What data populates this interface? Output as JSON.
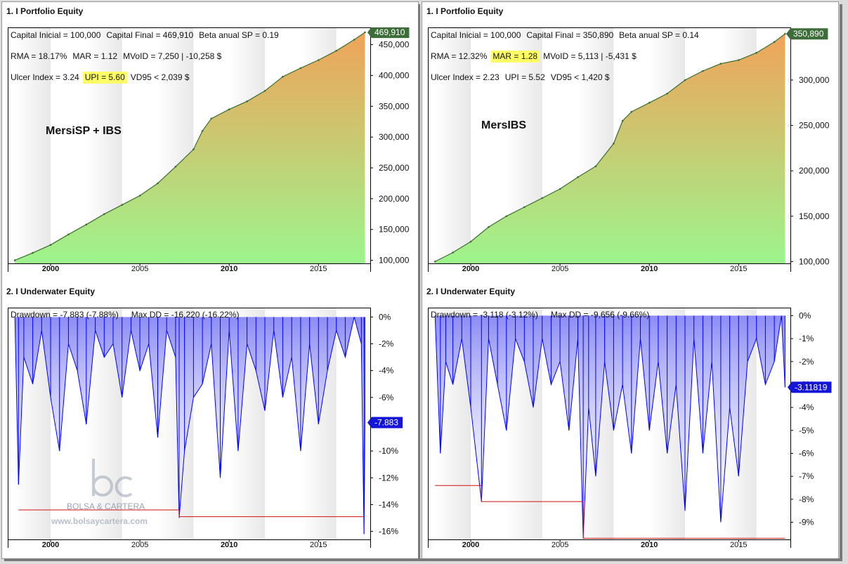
{
  "left": {
    "equity": {
      "pane_title": "1. I Portfolio Equity",
      "stats": [
        [
          "Capital Inicial = 100,000",
          "Capital Final = 469,910",
          "Beta anual SP = 0.19"
        ],
        [
          "RMA = 18.17%",
          "MAR = 1.12",
          "MVoID = 7,250 | -10,258 $"
        ],
        [
          "Ulcer Index = 3.24",
          "UPI = 5.60",
          "VD95 < 2,039 $"
        ]
      ],
      "highlight": "UPI = 5.60",
      "strategy_label": "MersiSP + IBS",
      "last_value_label": "469,910"
    },
    "underwater": {
      "pane_title": "2. I Underwater Equity",
      "stats": [
        "Drawdown = -7,883 (-7.88%)",
        "Max DD = -16,220 (-16.22%)"
      ],
      "last_value_label": "-7.883"
    },
    "watermark": {
      "name": "BOLSA & CARTERA",
      "url": "www.bolsaycartera.com"
    }
  },
  "right": {
    "equity": {
      "pane_title": "1. I Portfolio Equity",
      "stats": [
        [
          "Capital Inicial = 100,000",
          "Capital Final = 350,890",
          "Beta anual SP = 0.14"
        ],
        [
          "RMA = 12.32%",
          "MAR = 1.28",
          "MVoID = 5,113 | -5,431 $"
        ],
        [
          "Ulcer Index = 2.23",
          "UPI = 5.52",
          "VD95 < 1,420 $"
        ]
      ],
      "highlight": "MAR = 1.28",
      "strategy_label": "MersIBS",
      "last_value_label": "350,890"
    },
    "underwater": {
      "pane_title": "2. I Underwater Equity",
      "stats": [
        "Drawdown = -3,118 (-3.12%)",
        "Max DD = -9,656 (-9.66%)"
      ],
      "last_value_label": "-3.11819"
    }
  },
  "chart_data": [
    {
      "id": "left-equity",
      "type": "area",
      "title": "1. I Portfolio Equity",
      "xlabel": "",
      "ylabel": "",
      "x": [
        1998.0,
        1999.0,
        2000.0,
        2001.0,
        2002.0,
        2003.0,
        2004.0,
        2005.0,
        2006.0,
        2007.0,
        2008.0,
        2008.5,
        2009.0,
        2010.0,
        2011.0,
        2012.0,
        2013.0,
        2014.0,
        2015.0,
        2016.0,
        2017.0,
        2017.6
      ],
      "y": [
        100000,
        112000,
        125000,
        142000,
        158000,
        175000,
        190000,
        205000,
        225000,
        252000,
        280000,
        310000,
        330000,
        345000,
        358000,
        375000,
        398000,
        412000,
        425000,
        440000,
        458000,
        469910
      ],
      "xlim": [
        1997.6,
        2017.9
      ],
      "ylim": [
        95000,
        478000
      ],
      "xticks": [
        "2000",
        "2005",
        "2010",
        "2015"
      ],
      "xtick_values": [
        2000,
        2005,
        2010,
        2015
      ],
      "yticks": [
        "100,000",
        "150,000",
        "200,000",
        "250,000",
        "300,000",
        "350,000",
        "400,000",
        "450,000"
      ],
      "ytick_values": [
        100000,
        150000,
        200000,
        250000,
        300000,
        350000,
        400000,
        450000
      ],
      "colors": {
        "area_top": "#f0a35a",
        "area_bottom": "#9df58d",
        "line": "#3b6e2a"
      }
    },
    {
      "id": "right-equity",
      "type": "area",
      "title": "1. I Portfolio Equity",
      "xlabel": "",
      "ylabel": "",
      "x": [
        1998.0,
        1999.0,
        2000.0,
        2001.0,
        2002.0,
        2003.0,
        2004.0,
        2005.0,
        2006.0,
        2007.0,
        2008.0,
        2008.5,
        2009.0,
        2010.0,
        2011.0,
        2012.0,
        2013.0,
        2014.0,
        2015.0,
        2016.0,
        2017.0,
        2017.6
      ],
      "y": [
        100000,
        110000,
        122000,
        138000,
        150000,
        160000,
        170000,
        180000,
        193000,
        205000,
        230000,
        255000,
        265000,
        275000,
        285000,
        300000,
        310000,
        318000,
        322000,
        330000,
        342000,
        350890
      ],
      "xlim": [
        1997.6,
        2017.9
      ],
      "ylim": [
        98000,
        358000
      ],
      "xticks": [
        "2000",
        "2005",
        "2010",
        "2015"
      ],
      "xtick_values": [
        2000,
        2005,
        2010,
        2015
      ],
      "yticks": [
        "100,000",
        "150,000",
        "200,000",
        "250,000",
        "300,000"
      ],
      "ytick_values": [
        100000,
        150000,
        200000,
        250000,
        300000
      ],
      "colors": {
        "area_top": "#f0a35a",
        "area_bottom": "#9df58d",
        "line": "#3b6e2a"
      }
    },
    {
      "id": "left-underwater",
      "type": "area",
      "title": "2. I Underwater Equity",
      "xlabel": "",
      "ylabel": "",
      "x": [
        1998.0,
        1998.2,
        1998.5,
        1999.0,
        1999.5,
        2000.0,
        2000.5,
        2001.0,
        2001.5,
        2002.0,
        2002.5,
        2003.0,
        2003.5,
        2004.0,
        2004.5,
        2005.0,
        2005.5,
        2006.0,
        2006.5,
        2007.0,
        2007.2,
        2007.5,
        2008.0,
        2008.5,
        2009.0,
        2009.5,
        2010.0,
        2010.5,
        2011.0,
        2011.5,
        2012.0,
        2012.5,
        2013.0,
        2013.5,
        2014.0,
        2014.5,
        2015.0,
        2015.5,
        2016.0,
        2016.5,
        2017.0,
        2017.4,
        2017.55,
        2017.6
      ],
      "y": [
        0,
        -12.5,
        -3,
        -5,
        -1,
        -6,
        -10,
        -2,
        -4,
        -8,
        -1,
        -3,
        -2,
        -6,
        -1,
        -4,
        -2,
        -9,
        -1,
        -3,
        -15,
        -10,
        -6,
        -5,
        -2,
        -12,
        -1,
        -10,
        -2,
        -4,
        -7,
        -1,
        -6,
        -3,
        -10,
        -2,
        -8,
        -4,
        -1,
        -3,
        0,
        -2,
        -16.2,
        -7.88
      ],
      "max_dd_x": [
        1998.2,
        2007.2,
        2007.2,
        2017.55
      ],
      "max_dd_y": [
        -14.4,
        -14.4,
        -14.9,
        -14.9
      ],
      "xlim": [
        1997.6,
        2017.9
      ],
      "ylim": [
        -16.6,
        0.7
      ],
      "xticks": [
        "2000",
        "2005",
        "2010",
        "2015"
      ],
      "xtick_values": [
        2000,
        2005,
        2010,
        2015
      ],
      "yticks": [
        "0%",
        "-2%",
        "-4%",
        "-6%",
        "-8%",
        "-10%",
        "-12%",
        "-14%",
        "-16%"
      ],
      "ytick_values": [
        0,
        -2,
        -4,
        -6,
        -8,
        -10,
        -12,
        -14,
        -16
      ],
      "colors": {
        "area": "#0000ff",
        "max_dd": "#d01010"
      }
    },
    {
      "id": "right-underwater",
      "type": "area",
      "title": "2. I Underwater Equity",
      "xlabel": "",
      "ylabel": "",
      "x": [
        1998.0,
        1998.3,
        1998.6,
        1999.0,
        1999.5,
        2000.0,
        2000.6,
        2001.0,
        2001.5,
        2002.0,
        2002.5,
        2003.0,
        2003.5,
        2004.0,
        2004.5,
        2005.0,
        2005.5,
        2006.0,
        2006.3,
        2006.6,
        2007.0,
        2007.5,
        2008.0,
        2008.5,
        2009.0,
        2009.5,
        2010.0,
        2010.5,
        2011.0,
        2011.5,
        2012.0,
        2012.5,
        2013.0,
        2013.5,
        2014.0,
        2014.5,
        2015.0,
        2015.5,
        2016.0,
        2016.5,
        2017.0,
        2017.4,
        2017.6
      ],
      "y": [
        0,
        -6,
        -2,
        -3,
        -1,
        -4,
        -8.1,
        -1,
        -3,
        -5,
        -1,
        -2,
        -4,
        -1,
        -3,
        -2,
        -5,
        -1,
        -9.7,
        -4,
        -7,
        -2,
        -5,
        -3,
        -6,
        -1,
        -5,
        -2,
        -6,
        -3,
        -8.5,
        -1,
        -6,
        -2,
        -9,
        -4,
        -7,
        -2,
        -1,
        -3,
        -2,
        0,
        -3.12
      ],
      "max_dd_x": [
        1998.0,
        2000.6,
        2000.6,
        2006.3,
        2006.3,
        2017.6
      ],
      "max_dd_y": [
        -7.4,
        -7.4,
        -8.1,
        -8.1,
        -9.7,
        -9.7
      ],
      "xlim": [
        1997.6,
        2017.9
      ],
      "ylim": [
        -9.75,
        0.35
      ],
      "xticks": [
        "2000",
        "2005",
        "2010",
        "2015"
      ],
      "xtick_values": [
        2000,
        2005,
        2010,
        2015
      ],
      "yticks": [
        "0%",
        "-1%",
        "-2%",
        "-3%",
        "-4%",
        "-5%",
        "-6%",
        "-7%",
        "-8%",
        "-9%"
      ],
      "ytick_values": [
        0,
        -1,
        -2,
        -3,
        -4,
        -5,
        -6,
        -7,
        -8,
        -9
      ],
      "colors": {
        "area": "#0000ff",
        "max_dd": "#d01010"
      }
    }
  ]
}
